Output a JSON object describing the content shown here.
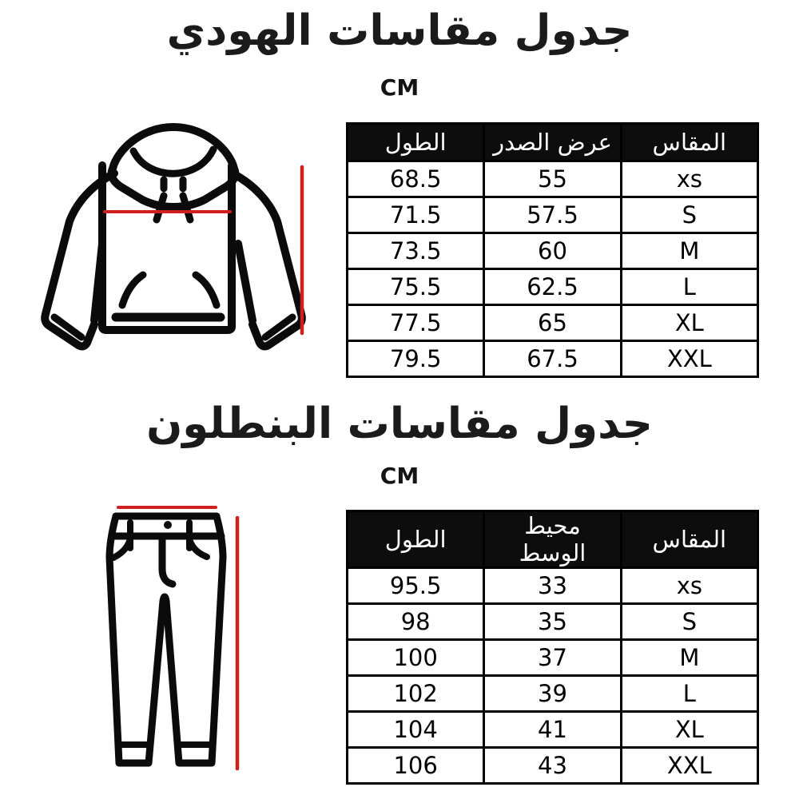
{
  "style": {
    "background": "#ffffff",
    "ink": "#000000",
    "table_header_bg": "#0d0d0d",
    "table_header_text": "#ffffff",
    "measure_line_color": "#d01f1f"
  },
  "chart_data": [
    {
      "id": "hoodie",
      "type": "table",
      "title": "جدول مقاسات الهودي",
      "unit": "CM",
      "illustration": "hoodie-line-drawing-with-red-measure-lines",
      "columns": [
        "المقاس",
        "عرض الصدر",
        "الطول"
      ],
      "column_meanings": [
        "size",
        "chest-width",
        "length"
      ],
      "rows": [
        [
          "xs",
          "55",
          "68.5"
        ],
        [
          "S",
          "57.5",
          "71.5"
        ],
        [
          "M",
          "60",
          "73.5"
        ],
        [
          "L",
          "62.5",
          "75.5"
        ],
        [
          "XL",
          "65",
          "77.5"
        ],
        [
          "XXL",
          "67.5",
          "79.5"
        ]
      ]
    },
    {
      "id": "pants",
      "type": "table",
      "title": "جدول مقاسات البنطلون",
      "unit": "CM",
      "illustration": "pants-line-drawing-with-red-measure-lines",
      "columns": [
        "المقاس",
        "محيط الوسط",
        "الطول"
      ],
      "column_meanings": [
        "size",
        "waist-circumference",
        "length"
      ],
      "rows": [
        [
          "xs",
          "33",
          "95.5"
        ],
        [
          "S",
          "35",
          "98"
        ],
        [
          "M",
          "37",
          "100"
        ],
        [
          "L",
          "39",
          "102"
        ],
        [
          "XL",
          "41",
          "104"
        ],
        [
          "XXL",
          "43",
          "106"
        ]
      ]
    }
  ]
}
